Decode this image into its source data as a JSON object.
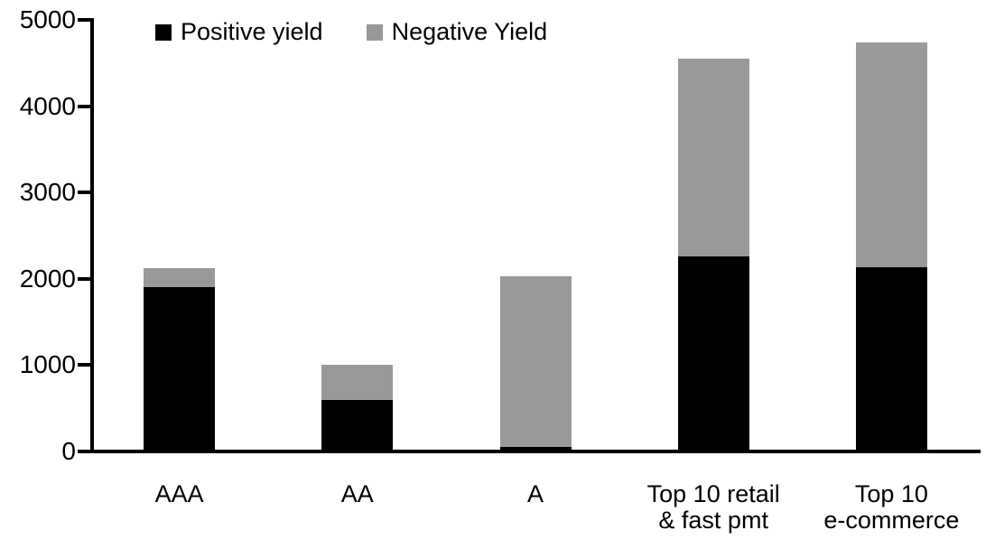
{
  "chart_data": {
    "type": "bar",
    "stacked": true,
    "title": "",
    "xlabel": "",
    "ylabel": "",
    "categories": [
      "AAA",
      "AA",
      "A",
      "Top 10 retail & fast pmt",
      "Top 10 e-commerce"
    ],
    "category_label_lines": [
      [
        "AAA"
      ],
      [
        "AA"
      ],
      [
        "A"
      ],
      [
        "Top 10 retail",
        "& fast pmt"
      ],
      [
        "Top 10",
        "e-commerce"
      ]
    ],
    "series": [
      {
        "name": "Positive yield",
        "color": "#000000",
        "values": [
          1900,
          600,
          50,
          2260,
          2130
        ]
      },
      {
        "name": "Negative Yield",
        "color": "#999999",
        "values": [
          220,
          400,
          1980,
          2290,
          2610
        ]
      }
    ],
    "totals": [
      2120,
      1000,
      2030,
      4550,
      4740
    ],
    "ylim": [
      0,
      5000
    ],
    "yticks": [
      0,
      1000,
      2000,
      3000,
      4000,
      5000
    ],
    "grid": false,
    "legend_position": "top",
    "axis_color": "#000000",
    "background_color": "#ffffff"
  },
  "legend": {
    "items": [
      {
        "label": "Positive yield",
        "color": "#000000"
      },
      {
        "label": "Negative Yield",
        "color": "#999999"
      }
    ]
  }
}
